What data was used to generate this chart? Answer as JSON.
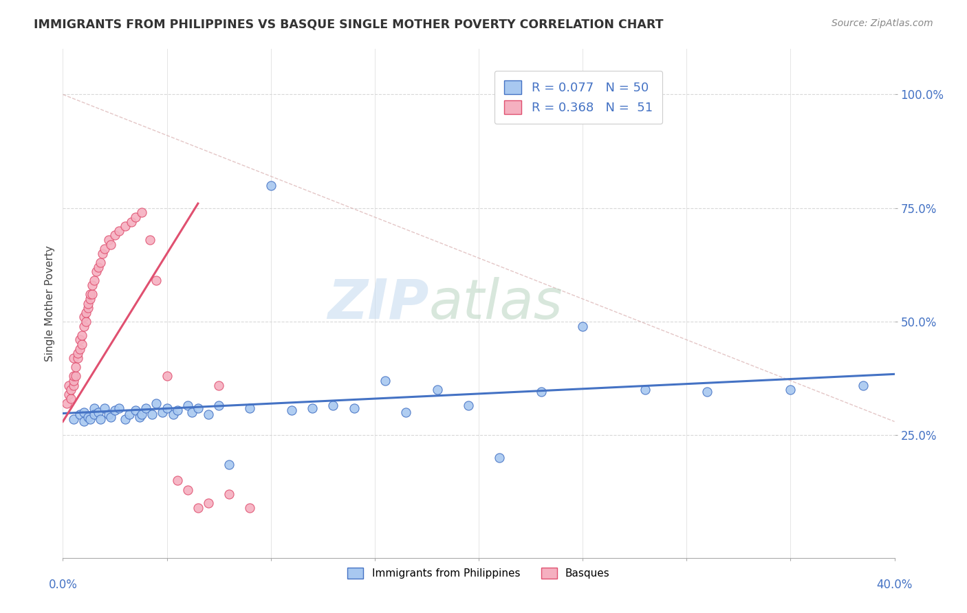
{
  "title": "IMMIGRANTS FROM PHILIPPINES VS BASQUE SINGLE MOTHER POVERTY CORRELATION CHART",
  "source": "Source: ZipAtlas.com",
  "ylabel": "Single Mother Poverty",
  "xlim": [
    0.0,
    0.4
  ],
  "ylim": [
    -0.02,
    1.1
  ],
  "color_blue": "#A8C8F0",
  "color_pink": "#F5B0C0",
  "color_blue_dark": "#4472C4",
  "color_pink_dark": "#E05070",
  "color_diag": "#D0A0A8",
  "blue_scatter_x": [
    0.005,
    0.008,
    0.01,
    0.01,
    0.012,
    0.013,
    0.015,
    0.015,
    0.017,
    0.018,
    0.02,
    0.022,
    0.023,
    0.025,
    0.027,
    0.03,
    0.032,
    0.035,
    0.037,
    0.038,
    0.04,
    0.043,
    0.045,
    0.048,
    0.05,
    0.053,
    0.055,
    0.06,
    0.062,
    0.065,
    0.07,
    0.075,
    0.08,
    0.09,
    0.1,
    0.11,
    0.12,
    0.13,
    0.14,
    0.155,
    0.165,
    0.18,
    0.195,
    0.21,
    0.23,
    0.25,
    0.28,
    0.31,
    0.35,
    0.385
  ],
  "blue_scatter_y": [
    0.285,
    0.295,
    0.28,
    0.3,
    0.29,
    0.285,
    0.31,
    0.295,
    0.3,
    0.285,
    0.31,
    0.295,
    0.29,
    0.305,
    0.31,
    0.285,
    0.295,
    0.305,
    0.29,
    0.295,
    0.31,
    0.295,
    0.32,
    0.3,
    0.31,
    0.295,
    0.305,
    0.315,
    0.3,
    0.31,
    0.295,
    0.315,
    0.185,
    0.31,
    0.8,
    0.305,
    0.31,
    0.315,
    0.31,
    0.37,
    0.3,
    0.35,
    0.315,
    0.2,
    0.345,
    0.49,
    0.35,
    0.345,
    0.35,
    0.36
  ],
  "pink_scatter_x": [
    0.002,
    0.003,
    0.003,
    0.004,
    0.004,
    0.005,
    0.005,
    0.005,
    0.005,
    0.006,
    0.006,
    0.007,
    0.007,
    0.008,
    0.008,
    0.009,
    0.009,
    0.01,
    0.01,
    0.011,
    0.011,
    0.012,
    0.012,
    0.013,
    0.013,
    0.014,
    0.014,
    0.015,
    0.016,
    0.017,
    0.018,
    0.019,
    0.02,
    0.022,
    0.023,
    0.025,
    0.027,
    0.03,
    0.033,
    0.035,
    0.038,
    0.042,
    0.045,
    0.05,
    0.055,
    0.06,
    0.065,
    0.07,
    0.075,
    0.08,
    0.09
  ],
  "pink_scatter_y": [
    0.32,
    0.34,
    0.36,
    0.33,
    0.35,
    0.36,
    0.37,
    0.38,
    0.42,
    0.38,
    0.4,
    0.42,
    0.43,
    0.44,
    0.46,
    0.45,
    0.47,
    0.49,
    0.51,
    0.5,
    0.52,
    0.53,
    0.54,
    0.55,
    0.56,
    0.56,
    0.58,
    0.59,
    0.61,
    0.62,
    0.63,
    0.65,
    0.66,
    0.68,
    0.67,
    0.69,
    0.7,
    0.71,
    0.72,
    0.73,
    0.74,
    0.68,
    0.59,
    0.38,
    0.15,
    0.13,
    0.09,
    0.1,
    0.36,
    0.12,
    0.09
  ]
}
